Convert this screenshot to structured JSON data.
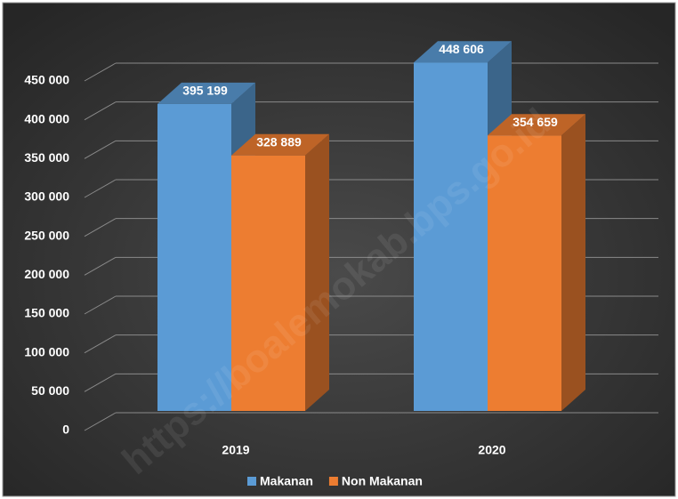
{
  "chart_data": {
    "type": "bar3d",
    "categories": [
      "2019",
      "2020"
    ],
    "series": [
      {
        "name": "Makanan",
        "color": "#5b9bd5",
        "values": [
          395199,
          448606
        ],
        "value_labels": [
          "395 199",
          "448 606"
        ]
      },
      {
        "name": "Non Makanan",
        "color": "#ed7d31",
        "values": [
          328889,
          354659
        ],
        "value_labels": [
          "328 889",
          "354 659"
        ]
      }
    ],
    "ylim": [
      0,
      450000
    ],
    "yticks": [
      0,
      {
        "value": 50000,
        "label": "50 000"
      },
      {
        "value": 100000,
        "label": "100 000"
      },
      {
        "value": 150000,
        "label": "150 000"
      },
      {
        "value": 200000,
        "label": "200 000"
      },
      {
        "value": 250000,
        "label": "250 000"
      },
      {
        "value": 300000,
        "label": "300 000"
      },
      {
        "value": 350000,
        "label": "350 000"
      },
      {
        "value": 400000,
        "label": "400 000"
      },
      {
        "value": 450000,
        "label": "450 000"
      }
    ],
    "grid": true,
    "legend": "bottom",
    "watermark": "https://boalemokab.bps.go.id"
  }
}
